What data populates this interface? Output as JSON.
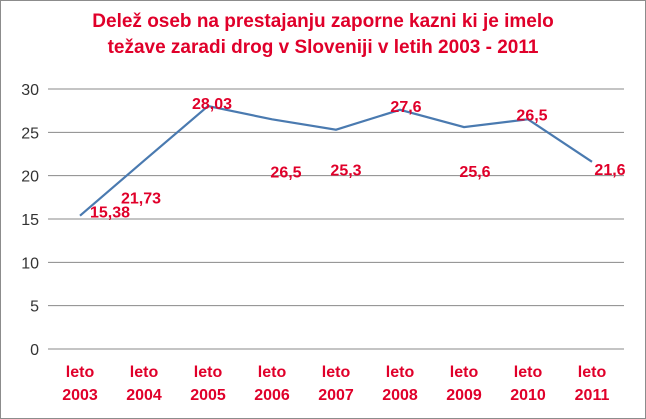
{
  "title_line1": "Delež oseb na prestajanju zaporne kazni ki je imelo",
  "title_line2": "težave  zaradi drog v Sloveniji v letih 2003 - 2011",
  "chart_data": {
    "type": "line",
    "title": "Delež oseb na prestajanju zaporne kazni ki je imelo težave  zaradi drog v Sloveniji v letih 2003 - 2011",
    "categories": [
      [
        "leto",
        "2003"
      ],
      [
        "leto",
        "2004"
      ],
      [
        "leto",
        "2005"
      ],
      [
        "leto",
        "2006"
      ],
      [
        "leto",
        "2007"
      ],
      [
        "leto",
        "2008"
      ],
      [
        "leto",
        "2009"
      ],
      [
        "leto",
        "2010"
      ],
      [
        "leto",
        "2011"
      ]
    ],
    "values": [
      15.38,
      21.73,
      28.03,
      26.5,
      25.3,
      27.6,
      25.6,
      26.5,
      21.6
    ],
    "data_labels": [
      "15,38",
      "21,73",
      "28,03",
      "26,5",
      "25,3",
      "27,6",
      "25,6",
      "26,5",
      "21,6"
    ],
    "yticks": [
      "0",
      "5",
      "10",
      "15",
      "20",
      "25",
      "30"
    ],
    "ylim": [
      0,
      30
    ],
    "xlabel": "",
    "ylabel": "",
    "grid": true,
    "legend": "none",
    "colors": {
      "title": "#e0002a",
      "labels": "#e0002a",
      "line": "#4a7ab0",
      "grid": "#8a8a8a",
      "axis_text": "#333333"
    }
  }
}
